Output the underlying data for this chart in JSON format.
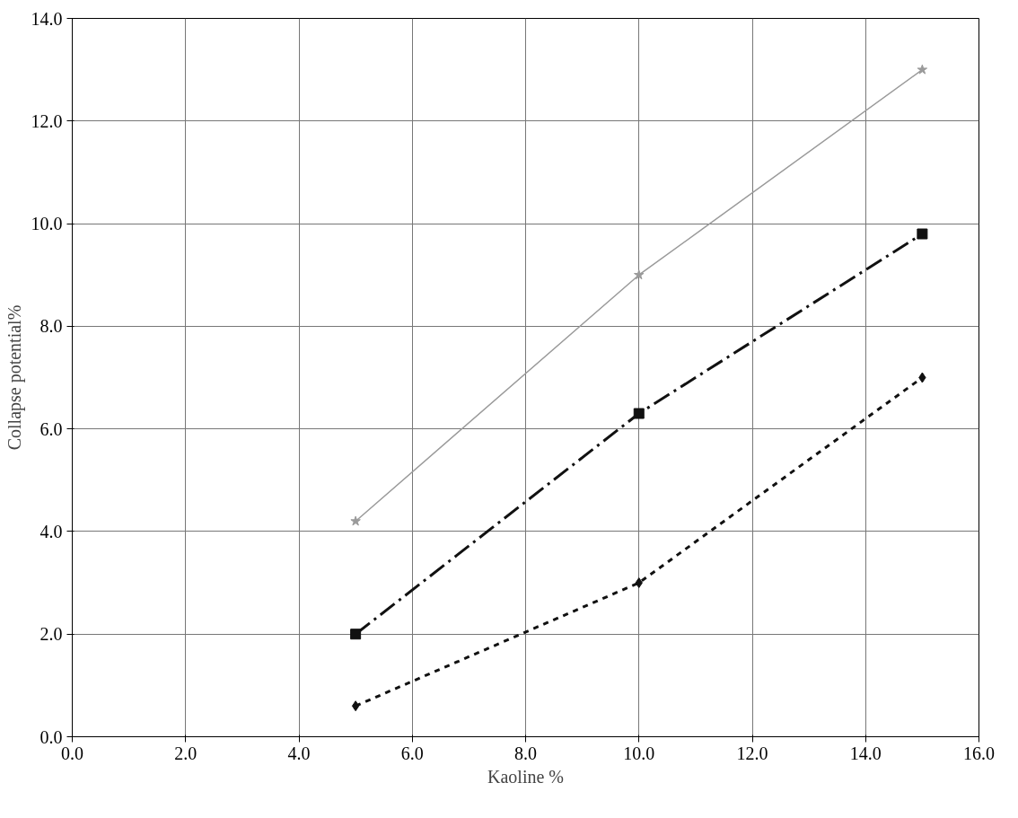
{
  "chart_data": {
    "type": "line",
    "xlabel": "Kaoline %",
    "ylabel": "Collapse potential%",
    "x": [
      5,
      10,
      15
    ],
    "series": [
      {
        "color": "#9a9a9a",
        "values": [
          4.2,
          9.0,
          13.0
        ],
        "marker": "star",
        "line_style": "solid"
      },
      {
        "color": "#111111",
        "values": [
          2.0,
          6.3,
          9.8
        ],
        "marker": "square",
        "line_style": "dashdot"
      },
      {
        "color": "#111111",
        "values": [
          0.6,
          3.0,
          7.0
        ],
        "marker": "diamond",
        "line_style": "dashed"
      }
    ],
    "xlim": [
      0,
      16
    ],
    "xticks": [
      {
        "value": 0,
        "label": "0.0"
      },
      {
        "value": 2,
        "label": "2.0"
      },
      {
        "value": 4,
        "label": "4.0"
      },
      {
        "value": 6,
        "label": "6.0"
      },
      {
        "value": 8,
        "label": "8.0"
      },
      {
        "value": 10,
        "label": "10.0"
      },
      {
        "value": 12,
        "label": "12.0"
      },
      {
        "value": 14,
        "label": "14.0"
      },
      {
        "value": 16,
        "label": "16.0"
      }
    ],
    "ylim": [
      0,
      14
    ],
    "yticks": [
      {
        "value": 0,
        "label": "0.0"
      },
      {
        "value": 2,
        "label": "2.0"
      },
      {
        "value": 4,
        "label": "4.0"
      },
      {
        "value": 6,
        "label": "6.0"
      },
      {
        "value": 8,
        "label": "8.0"
      },
      {
        "value": 10,
        "label": "10.0"
      },
      {
        "value": 12,
        "label": "12.0"
      },
      {
        "value": 14,
        "label": "14.0"
      }
    ],
    "grid": true
  }
}
